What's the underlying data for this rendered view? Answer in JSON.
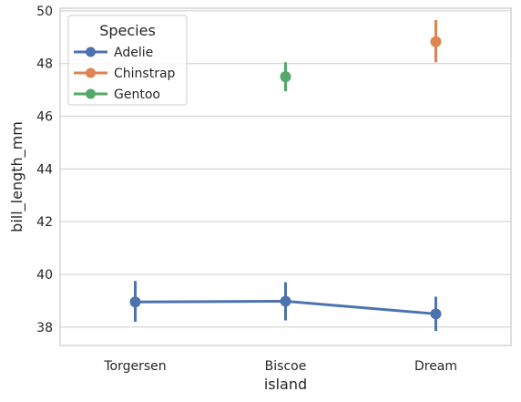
{
  "chart_data": {
    "type": "pointplot",
    "title": "",
    "xlabel": "island",
    "ylabel": "bill_length_mm",
    "categories": [
      "Torgersen",
      "Biscoe",
      "Dream"
    ],
    "ylim": [
      37.3,
      50.1
    ],
    "yticks": [
      38,
      40,
      42,
      44,
      46,
      48,
      50
    ],
    "grid": true,
    "legend": {
      "title": "Species",
      "placement": "top-left"
    },
    "series": [
      {
        "name": "Adelie",
        "color": "#4c72b0",
        "values": [
          38.95,
          38.98,
          38.5
        ],
        "ci_low": [
          38.2,
          38.25,
          37.85
        ],
        "ci_high": [
          39.75,
          39.7,
          39.15
        ]
      },
      {
        "name": "Chinstrap",
        "color": "#dd8452",
        "values": [
          null,
          null,
          48.83
        ],
        "ci_low": [
          null,
          null,
          48.05
        ],
        "ci_high": [
          null,
          null,
          49.65
        ]
      },
      {
        "name": "Gentoo",
        "color": "#55a868",
        "values": [
          null,
          47.5,
          null
        ],
        "ci_low": [
          null,
          46.95,
          null
        ],
        "ci_high": [
          null,
          48.05,
          null
        ]
      }
    ]
  }
}
